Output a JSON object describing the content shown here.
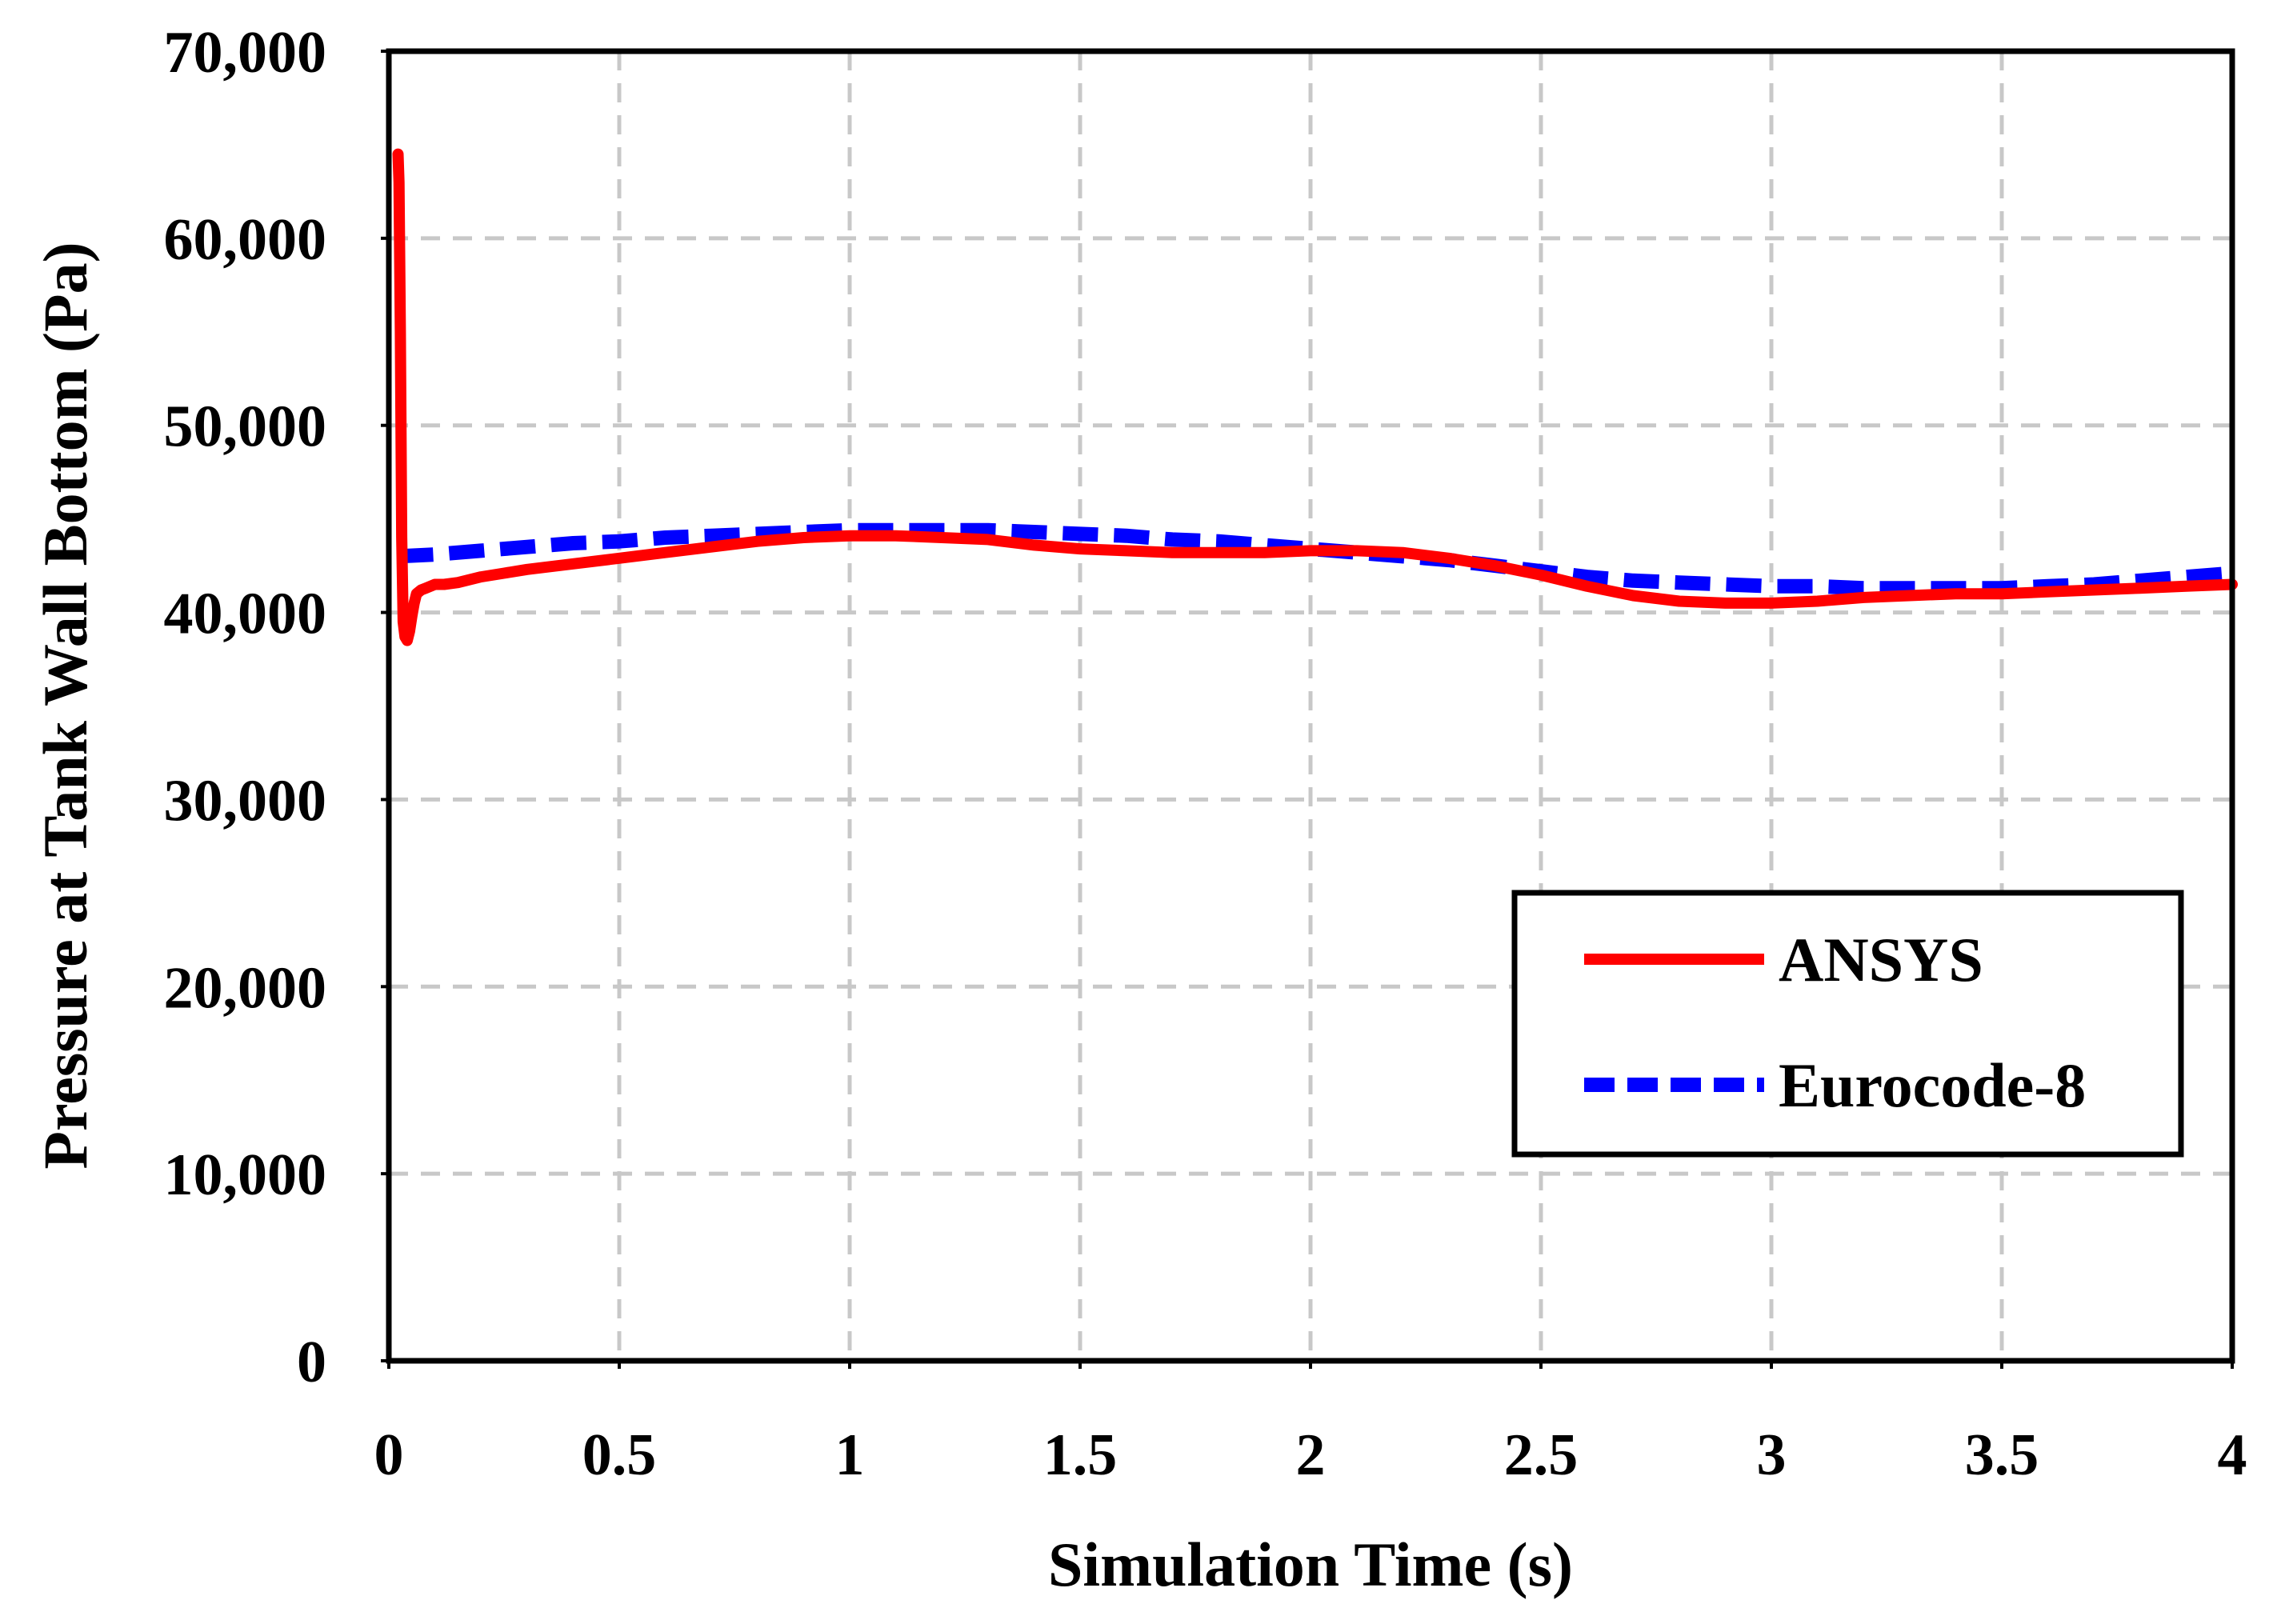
{
  "chart_data": {
    "type": "line",
    "title": "",
    "xlabel": "Simulation Time (s)",
    "ylabel": "Pressure at Tank Wall Bottom (Pa)",
    "xlim": [
      0,
      4
    ],
    "ylim": [
      0,
      70000
    ],
    "grid": true,
    "x_ticks": [
      0,
      0.5,
      1,
      1.5,
      2,
      2.5,
      3,
      3.5,
      4
    ],
    "x_tick_labels": [
      "0",
      "0.5",
      "1",
      "1.5",
      "2",
      "2.5",
      "3",
      "3.5",
      "4"
    ],
    "y_ticks": [
      0,
      10000,
      20000,
      30000,
      40000,
      50000,
      60000,
      70000
    ],
    "y_tick_labels": [
      "0",
      "10,000",
      "20,000",
      "30,000",
      "40,000",
      "50,000",
      "60,000",
      "70,000"
    ],
    "legend_position": "right-middle",
    "series": [
      {
        "name": "ANSYS",
        "color": "#ff0000",
        "style": "solid",
        "x": [
          0.02,
          0.022,
          0.025,
          0.028,
          0.031,
          0.035,
          0.04,
          0.045,
          0.05,
          0.055,
          0.06,
          0.07,
          0.08,
          0.1,
          0.12,
          0.15,
          0.2,
          0.25,
          0.3,
          0.4,
          0.5,
          0.6,
          0.7,
          0.8,
          0.9,
          1.0,
          1.1,
          1.2,
          1.3,
          1.4,
          1.5,
          1.6,
          1.7,
          1.8,
          1.9,
          2.0,
          2.1,
          2.2,
          2.3,
          2.4,
          2.5,
          2.6,
          2.7,
          2.8,
          2.9,
          3.0,
          3.1,
          3.2,
          3.3,
          3.4,
          3.5,
          3.6,
          3.7,
          3.8,
          3.9,
          4.0
        ],
        "y": [
          64500,
          63000,
          55000,
          44000,
          39500,
          38700,
          38500,
          39000,
          39800,
          40500,
          41000,
          41200,
          41300,
          41500,
          41500,
          41600,
          41900,
          42100,
          42300,
          42600,
          42900,
          43200,
          43500,
          43800,
          44000,
          44100,
          44100,
          44000,
          43900,
          43600,
          43400,
          43300,
          43200,
          43200,
          43200,
          43300,
          43300,
          43200,
          42900,
          42500,
          42000,
          41400,
          40900,
          40600,
          40500,
          40500,
          40600,
          40800,
          40900,
          41000,
          41000,
          41100,
          41200,
          41300,
          41400,
          41500
        ]
      },
      {
        "name": "Eurocode-8",
        "color": "#0000ff",
        "style": "dashed",
        "x": [
          0.02,
          0.1,
          0.2,
          0.3,
          0.4,
          0.5,
          0.6,
          0.7,
          0.8,
          0.9,
          1.0,
          1.1,
          1.2,
          1.3,
          1.4,
          1.5,
          1.6,
          1.7,
          1.8,
          1.9,
          2.0,
          2.1,
          2.2,
          2.3,
          2.4,
          2.5,
          2.6,
          2.7,
          2.8,
          2.9,
          3.0,
          3.1,
          3.2,
          3.3,
          3.4,
          3.5,
          3.6,
          3.7,
          3.8,
          3.9,
          4.0
        ],
        "y": [
          43000,
          43100,
          43300,
          43500,
          43700,
          43800,
          44000,
          44100,
          44200,
          44300,
          44400,
          44400,
          44400,
          44400,
          44300,
          44200,
          44100,
          43900,
          43800,
          43600,
          43400,
          43200,
          43000,
          42800,
          42500,
          42200,
          41900,
          41700,
          41600,
          41500,
          41400,
          41400,
          41300,
          41300,
          41300,
          41300,
          41400,
          41500,
          41700,
          41900,
          42100
        ]
      }
    ]
  }
}
